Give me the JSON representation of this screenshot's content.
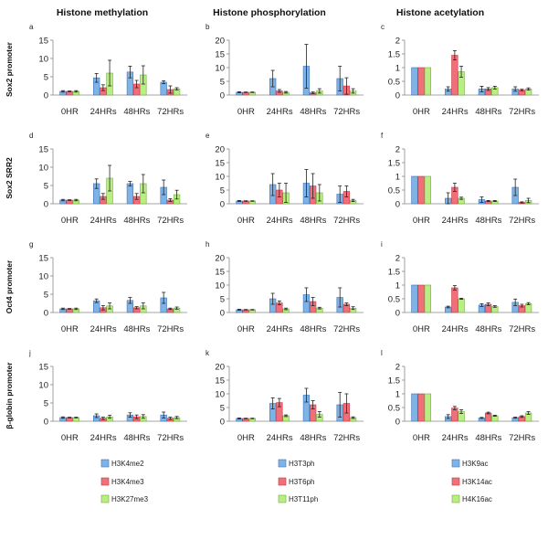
{
  "colors": {
    "blue": "#7fb2e5",
    "blue_edge": "#3e74b8",
    "red": "#f0707a",
    "red_edge": "#c23b47",
    "green": "#b8ee82",
    "green_edge": "#6fae3a"
  },
  "column_titles": [
    "Histone methylation",
    "Histone phosphorylation",
    "Histone acetylation"
  ],
  "row_labels": [
    "Sox2 promoter",
    "Sox2 SRR2",
    "Oct4 promoter",
    "β-globin promoter"
  ],
  "legends": [
    [
      "H3K4me2",
      "H3K4me3",
      "H3K27me3"
    ],
    [
      "H3T3ph",
      "H3T6ph",
      "H3T11ph"
    ],
    [
      "H3K9ac",
      "H3K14ac",
      "H4K16ac"
    ]
  ],
  "chart_data": [
    {
      "type": "bar",
      "panel": "a",
      "row": 0,
      "col": 0,
      "categories": [
        "0HR",
        "24HRs",
        "48HRs",
        "72HRs"
      ],
      "ylim": [
        0,
        15
      ],
      "yticks": [
        0,
        5,
        10,
        15
      ],
      "series": [
        {
          "name": "H3K4me2",
          "values": [
            1,
            4.7,
            6.3,
            3.5
          ],
          "err": [
            0.2,
            1.2,
            1.6,
            0.4
          ]
        },
        {
          "name": "H3K4me3",
          "values": [
            1,
            2,
            3,
            1.5
          ],
          "err": [
            0.1,
            0.8,
            1.0,
            1.0
          ]
        },
        {
          "name": "H3K27me3",
          "values": [
            1,
            6,
            5.5,
            1.7
          ],
          "err": [
            0.2,
            3.5,
            2.5,
            0.3
          ]
        }
      ]
    },
    {
      "type": "bar",
      "panel": "b",
      "row": 0,
      "col": 1,
      "categories": [
        "0HR",
        "24HRs",
        "48HRs",
        "72HRs"
      ],
      "ylim": [
        0,
        20
      ],
      "yticks": [
        0,
        5,
        10,
        15,
        20
      ],
      "series": [
        {
          "name": "H3T3ph",
          "values": [
            1,
            6,
            10.5,
            6
          ],
          "err": [
            0.2,
            3,
            8,
            4.5
          ]
        },
        {
          "name": "H3T6ph",
          "values": [
            1,
            1.5,
            0.8,
            3.3
          ],
          "err": [
            0.1,
            0.5,
            0.3,
            3
          ]
        },
        {
          "name": "H3T11ph",
          "values": [
            1,
            1,
            1.5,
            1.5
          ],
          "err": [
            0.1,
            0.3,
            0.8,
            0.8
          ]
        }
      ]
    },
    {
      "type": "bar",
      "panel": "c",
      "row": 0,
      "col": 2,
      "categories": [
        "0HR",
        "24HRs",
        "48HRs",
        "72HRs"
      ],
      "ylim": [
        0,
        2
      ],
      "yticks": [
        0,
        0.5,
        1,
        1.5,
        2
      ],
      "series": [
        {
          "name": "H3K9ac",
          "values": [
            1,
            0.22,
            0.22,
            0.22
          ],
          "err": [
            0,
            0.08,
            0.1,
            0.08
          ]
        },
        {
          "name": "H3K14ac",
          "values": [
            1,
            1.45,
            0.22,
            0.18
          ],
          "err": [
            0,
            0.17,
            0.05,
            0.03
          ]
        },
        {
          "name": "H4K16ac",
          "values": [
            1,
            0.85,
            0.27,
            0.22
          ],
          "err": [
            0,
            0.2,
            0.05,
            0.04
          ]
        }
      ]
    },
    {
      "type": "bar",
      "panel": "d",
      "row": 1,
      "col": 0,
      "categories": [
        "0HR",
        "24HRs",
        "48HRs",
        "72HRs"
      ],
      "ylim": [
        0,
        15
      ],
      "yticks": [
        0,
        5,
        10,
        15
      ],
      "series": [
        {
          "name": "H3K4me2",
          "values": [
            1,
            5.5,
            5.5,
            4.5
          ],
          "err": [
            0.2,
            1.3,
            0.6,
            2.0
          ]
        },
        {
          "name": "H3K4me3",
          "values": [
            1,
            2,
            2,
            1
          ],
          "err": [
            0.1,
            0.8,
            0.8,
            0.4
          ]
        },
        {
          "name": "H3K27me3",
          "values": [
            1,
            7,
            5.5,
            2.5
          ],
          "err": [
            0.2,
            3.5,
            2.5,
            1.2
          ]
        }
      ]
    },
    {
      "type": "bar",
      "panel": "e",
      "row": 1,
      "col": 1,
      "categories": [
        "0HR",
        "24HRs",
        "48HRs",
        "72HRs"
      ],
      "ylim": [
        0,
        20
      ],
      "yticks": [
        0,
        5,
        10,
        15,
        20
      ],
      "series": [
        {
          "name": "H3T3ph",
          "values": [
            1,
            7,
            7.5,
            3.5
          ],
          "err": [
            0.2,
            4,
            5,
            3
          ]
        },
        {
          "name": "H3T6ph",
          "values": [
            1,
            5,
            6.5,
            4.5
          ],
          "err": [
            0.1,
            2.5,
            4.5,
            2
          ]
        },
        {
          "name": "H3T11ph",
          "values": [
            1,
            4,
            4,
            1.2
          ],
          "err": [
            0.1,
            3.5,
            3,
            0.4
          ]
        }
      ]
    },
    {
      "type": "bar",
      "panel": "f",
      "row": 1,
      "col": 2,
      "categories": [
        "0HR",
        "24HRs",
        "48HRs",
        "72HRs"
      ],
      "ylim": [
        0,
        2
      ],
      "yticks": [
        0,
        0.5,
        1,
        1.5,
        2
      ],
      "series": [
        {
          "name": "H3K9ac",
          "values": [
            1,
            0.2,
            0.15,
            0.6
          ],
          "err": [
            0,
            0.2,
            0.1,
            0.3
          ]
        },
        {
          "name": "H3K14ac",
          "values": [
            1,
            0.6,
            0.1,
            0.05
          ],
          "err": [
            0,
            0.15,
            0.02,
            0.02
          ]
        },
        {
          "name": "H4K16ac",
          "values": [
            1,
            0.2,
            0.1,
            0.12
          ],
          "err": [
            0,
            0.04,
            0.02,
            0.08
          ]
        }
      ]
    },
    {
      "type": "bar",
      "panel": "g",
      "row": 2,
      "col": 0,
      "categories": [
        "0HR",
        "24HRs",
        "48HRs",
        "72HRs"
      ],
      "ylim": [
        0,
        15
      ],
      "yticks": [
        0,
        5,
        10,
        15
      ],
      "series": [
        {
          "name": "H3K4me2",
          "values": [
            1,
            3.2,
            3.3,
            4
          ],
          "err": [
            0.2,
            0.5,
            0.8,
            1.5
          ]
        },
        {
          "name": "H3K4me3",
          "values": [
            1,
            1.3,
            1.3,
            1
          ],
          "err": [
            0.1,
            0.6,
            0.3,
            0.2
          ]
        },
        {
          "name": "H3K27me3",
          "values": [
            1,
            1.8,
            1.8,
            1.2
          ],
          "err": [
            0.2,
            0.8,
            0.8,
            0.3
          ]
        }
      ]
    },
    {
      "type": "bar",
      "panel": "h",
      "row": 2,
      "col": 1,
      "categories": [
        "0HR",
        "24HRs",
        "48HRs",
        "72HRs"
      ],
      "ylim": [
        0,
        20
      ],
      "yticks": [
        0,
        5,
        10,
        15,
        20
      ],
      "series": [
        {
          "name": "H3T3ph",
          "values": [
            1,
            5,
            6.5,
            5.5
          ],
          "err": [
            0.2,
            2,
            2.5,
            3.5
          ]
        },
        {
          "name": "H3T6ph",
          "values": [
            1,
            3.5,
            4,
            3
          ],
          "err": [
            0.1,
            0.7,
            1.5,
            0.5
          ]
        },
        {
          "name": "H3T11ph",
          "values": [
            1,
            1.3,
            1.6,
            1.6
          ],
          "err": [
            0.1,
            0.3,
            0.3,
            0.5
          ]
        }
      ]
    },
    {
      "type": "bar",
      "panel": "i",
      "row": 2,
      "col": 2,
      "categories": [
        "0HR",
        "24HRs",
        "48HRs",
        "72HRs"
      ],
      "ylim": [
        0,
        2
      ],
      "yticks": [
        0,
        0.5,
        1,
        1.5,
        2
      ],
      "series": [
        {
          "name": "H3K9ac",
          "values": [
            1,
            0.2,
            0.27,
            0.37
          ],
          "err": [
            0,
            0.03,
            0.05,
            0.12
          ]
        },
        {
          "name": "H3K14ac",
          "values": [
            1,
            0.9,
            0.3,
            0.25
          ],
          "err": [
            0,
            0.08,
            0.05,
            0.05
          ]
        },
        {
          "name": "H4K16ac",
          "values": [
            1,
            0.5,
            0.22,
            0.32
          ],
          "err": [
            0,
            0.02,
            0.03,
            0.04
          ]
        }
      ]
    },
    {
      "type": "bar",
      "panel": "j",
      "row": 3,
      "col": 0,
      "categories": [
        "0HR",
        "24HRs",
        "48HRs",
        "72HRs"
      ],
      "ylim": [
        0,
        15
      ],
      "yticks": [
        0,
        5,
        10,
        15
      ],
      "series": [
        {
          "name": "H3K4me2",
          "values": [
            1,
            1.5,
            1.7,
            1.7
          ],
          "err": [
            0.2,
            0.5,
            0.6,
            0.8
          ]
        },
        {
          "name": "H3K4me3",
          "values": [
            1,
            0.8,
            1.2,
            0.8
          ],
          "err": [
            0.1,
            0.3,
            0.5,
            0.3
          ]
        },
        {
          "name": "H3K27me3",
          "values": [
            1,
            1.2,
            1.3,
            1
          ],
          "err": [
            0.1,
            0.4,
            0.5,
            0.3
          ]
        }
      ]
    },
    {
      "type": "bar",
      "panel": "k",
      "row": 3,
      "col": 1,
      "categories": [
        "0HR",
        "24HRs",
        "48HRs",
        "72HRs"
      ],
      "ylim": [
        0,
        20
      ],
      "yticks": [
        0,
        5,
        10,
        15,
        20
      ],
      "series": [
        {
          "name": "H3T3ph",
          "values": [
            1,
            6.5,
            9.5,
            6
          ],
          "err": [
            0.2,
            2,
            2.5,
            4.5
          ]
        },
        {
          "name": "H3T6ph",
          "values": [
            1,
            6.8,
            6,
            6.5
          ],
          "err": [
            0.1,
            1.5,
            1.5,
            3.5
          ]
        },
        {
          "name": "H3T11ph",
          "values": [
            1,
            2,
            2.5,
            1.3
          ],
          "err": [
            0.1,
            0.3,
            1,
            0.3
          ]
        }
      ]
    },
    {
      "type": "bar",
      "panel": "l",
      "row": 3,
      "col": 2,
      "categories": [
        "0HR",
        "24HRs",
        "48HRs",
        "72HRs"
      ],
      "ylim": [
        0,
        2
      ],
      "yticks": [
        0,
        0.5,
        1,
        1.5,
        2
      ],
      "series": [
        {
          "name": "H3K9ac",
          "values": [
            1,
            0.17,
            0.12,
            0.13
          ],
          "err": [
            0,
            0.07,
            0.02,
            0.02
          ]
        },
        {
          "name": "H3K14ac",
          "values": [
            1,
            0.48,
            0.3,
            0.17
          ],
          "err": [
            0,
            0.06,
            0.03,
            0.03
          ]
        },
        {
          "name": "H4K16ac",
          "values": [
            1,
            0.35,
            0.2,
            0.3
          ],
          "err": [
            0,
            0.07,
            0.02,
            0.05
          ]
        }
      ]
    }
  ]
}
